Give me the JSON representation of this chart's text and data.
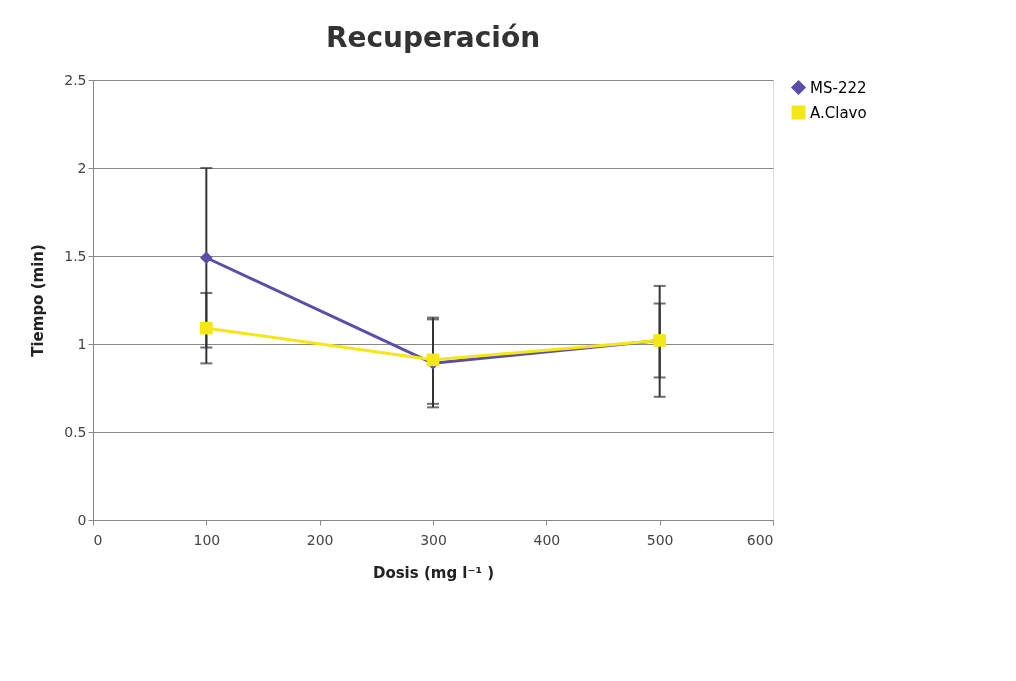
{
  "chart_data": {
    "type": "line",
    "title": "Recuperación",
    "xlabel": "Dosis (mg l⁻¹ )",
    "ylabel": "Tiempo (min)",
    "x": [
      100,
      300,
      500
    ],
    "series": [
      {
        "name": "MS-222",
        "color": "#5b4ea8",
        "marker": "diamond",
        "values": [
          1.49,
          0.89,
          1.02
        ],
        "errors": [
          [
            0.89,
            2.0
          ],
          [
            0.64,
            1.15
          ],
          [
            0.7,
            1.33
          ]
        ]
      },
      {
        "name": "A.Clavo",
        "color": "#f5e616",
        "marker": "square",
        "values": [
          1.09,
          0.91,
          1.02
        ],
        "errors": [
          [
            0.98,
            1.29
          ],
          [
            0.66,
            1.14
          ],
          [
            0.81,
            1.23
          ]
        ]
      }
    ],
    "xlim": [
      0,
      600
    ],
    "xticks": [
      0,
      100,
      200,
      300,
      400,
      500,
      600
    ],
    "ylim": [
      0,
      2.5
    ],
    "yticks": [
      0,
      0.5,
      1,
      1.5,
      2,
      2.5
    ],
    "grid": "y",
    "legend": "right"
  }
}
